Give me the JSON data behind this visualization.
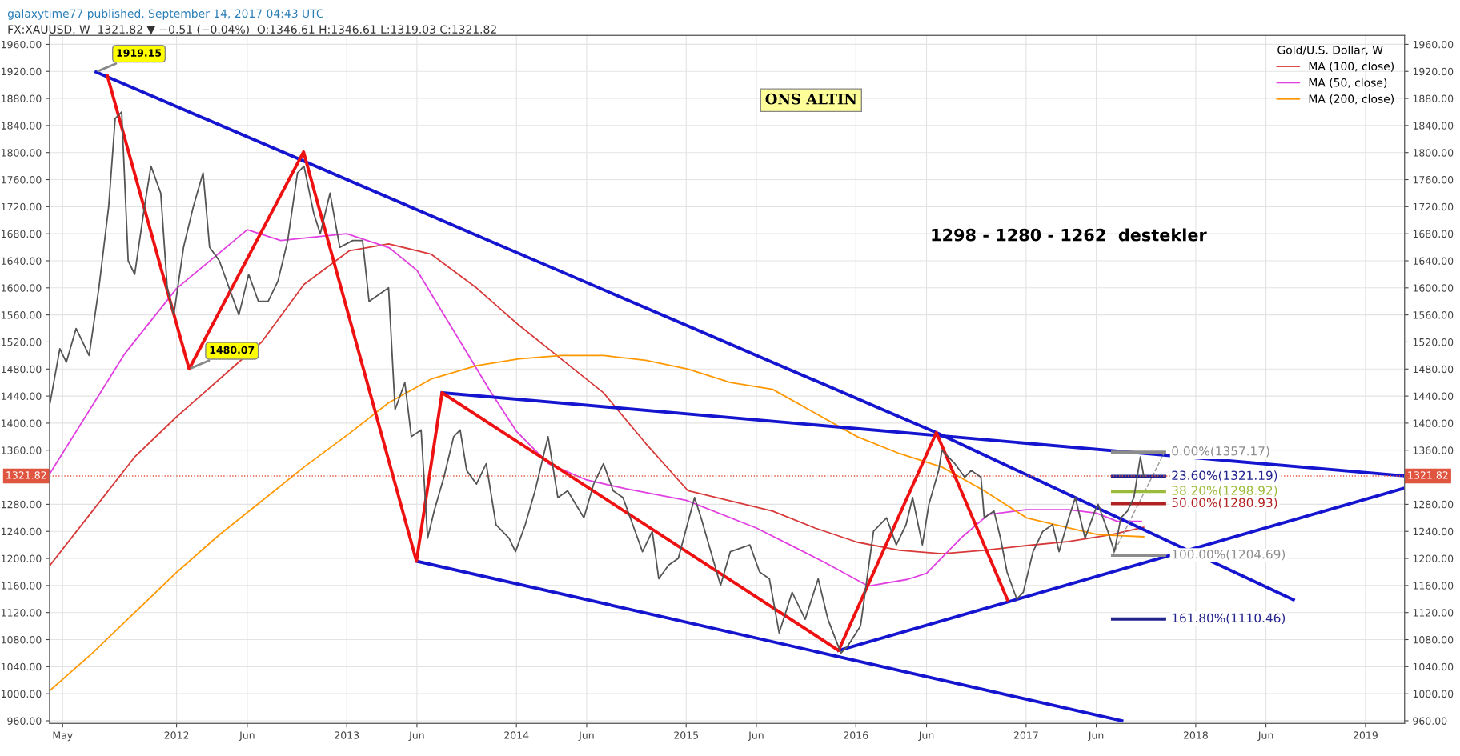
{
  "chart_data": {
    "type": "line",
    "title": "galaxytime77 published, September 14, 2017 04:43 UTC",
    "subtitle": "FX:XAUUSD, W  1321.82 ▼ −0.51 (−0.04%)  O:1346.61 H:1346.61 L:1319.03 C:1321.82",
    "legend_title": "Gold/U.S. Dollar, W",
    "legend": "top right",
    "grid": true,
    "xlim": [
      "2011-04-03",
      "2019-03-26"
    ],
    "xticks": [
      {
        "value": "2011-05-01",
        "label": "May"
      },
      {
        "value": "2012-01-01",
        "label": "2012"
      },
      {
        "value": "2012-06-01",
        "label": "Jun"
      },
      {
        "value": "2013-01-01",
        "label": "2013"
      },
      {
        "value": "2013-06-01",
        "label": "Jun"
      },
      {
        "value": "2014-01-01",
        "label": "2014"
      },
      {
        "value": "2014-06-01",
        "label": "Jun"
      },
      {
        "value": "2015-01-01",
        "label": "2015"
      },
      {
        "value": "2015-06-01",
        "label": "Jun"
      },
      {
        "value": "2016-01-01",
        "label": "2016"
      },
      {
        "value": "2016-06-01",
        "label": "Jun"
      },
      {
        "value": "2017-01-01",
        "label": "2017"
      },
      {
        "value": "2017-06-01",
        "label": "Jun"
      },
      {
        "value": "2018-01-01",
        "label": "2018"
      },
      {
        "value": "2018-06-01",
        "label": "Jun"
      },
      {
        "value": "2019-01-01",
        "label": "2019"
      }
    ],
    "ylim": [
      956,
      1973
    ],
    "yticks": [
      {
        "value": 960,
        "label": "960.00"
      },
      {
        "value": 1000,
        "label": "1000.00"
      },
      {
        "value": 1040,
        "label": "1040.00"
      },
      {
        "value": 1080,
        "label": "1080.00"
      },
      {
        "value": 1120,
        "label": "1120.00"
      },
      {
        "value": 1160,
        "label": "1160.00"
      },
      {
        "value": 1200,
        "label": "1200.00"
      },
      {
        "value": 1240,
        "label": "1240.00"
      },
      {
        "value": 1280,
        "label": "1280.00"
      },
      {
        "value": 1360,
        "label": "1360.00"
      },
      {
        "value": 1400,
        "label": "1400.00"
      },
      {
        "value": 1440,
        "label": "1440.00"
      },
      {
        "value": 1480,
        "label": "1480.00"
      },
      {
        "value": 1520,
        "label": "1520.00"
      },
      {
        "value": 1560,
        "label": "1560.00"
      },
      {
        "value": 1600,
        "label": "1600.00"
      },
      {
        "value": 1640,
        "label": "1640.00"
      },
      {
        "value": 1680,
        "label": "1680.00"
      },
      {
        "value": 1720,
        "label": "1720.00"
      },
      {
        "value": 1760,
        "label": "1760.00"
      },
      {
        "value": 1800,
        "label": "1800.00"
      },
      {
        "value": 1840,
        "label": "1840.00"
      },
      {
        "value": 1880,
        "label": "1880.00"
      },
      {
        "value": 1920,
        "label": "1920.00"
      },
      {
        "value": 1960,
        "label": "1960.00"
      }
    ],
    "y2lim": [
      956,
      1973
    ],
    "y2ticks": [
      {
        "value": 960,
        "label": "960.00"
      },
      {
        "value": 1000,
        "label": "1000.00"
      },
      {
        "value": 1040,
        "label": "1040.00"
      },
      {
        "value": 1080,
        "label": "1080.00"
      },
      {
        "value": 1120,
        "label": "1120.00"
      },
      {
        "value": 1160,
        "label": "1160.00"
      },
      {
        "value": 1200,
        "label": "1200.00"
      },
      {
        "value": 1240,
        "label": "1240.00"
      },
      {
        "value": 1280,
        "label": "1280.00"
      },
      {
        "value": 1360,
        "label": "1360.00"
      },
      {
        "value": 1400,
        "label": "1400.00"
      },
      {
        "value": 1440,
        "label": "1440.00"
      },
      {
        "value": 1480,
        "label": "1480.00"
      },
      {
        "value": 1520,
        "label": "1520.00"
      },
      {
        "value": 1560,
        "label": "1560.00"
      },
      {
        "value": 1600,
        "label": "1600.00"
      },
      {
        "value": 1640,
        "label": "1640.00"
      },
      {
        "value": 1680,
        "label": "1680.00"
      },
      {
        "value": 1720,
        "label": "1720.00"
      },
      {
        "value": 1760,
        "label": "1760.00"
      },
      {
        "value": 1800,
        "label": "1800.00"
      },
      {
        "value": 1840,
        "label": "1840.00"
      },
      {
        "value": 1880,
        "label": "1880.00"
      },
      {
        "value": 1920,
        "label": "1920.00"
      },
      {
        "value": 1960,
        "label": "1960.00"
      }
    ],
    "ref_lines": [
      {
        "axis": "y",
        "value": 1321.82,
        "label": "1321.82",
        "color": "#e0553f",
        "line_style": "dotted"
      }
    ],
    "series": [
      {
        "color": "#555555",
        "x": [
          "2011-04-04",
          "2011-04-25",
          "2011-05-09",
          "2011-05-30",
          "2011-06-27",
          "2011-07-18",
          "2011-08-08",
          "2011-08-22",
          "2011-09-05",
          "2011-09-19",
          "2011-10-03",
          "2011-10-24",
          "2011-11-07",
          "2011-11-28",
          "2011-12-12",
          "2011-12-26",
          "2012-01-16",
          "2012-02-06",
          "2012-02-27",
          "2012-03-12",
          "2012-04-02",
          "2012-05-14",
          "2012-06-04",
          "2012-06-25",
          "2012-07-16",
          "2012-08-06",
          "2012-08-27",
          "2012-09-17",
          "2012-10-01",
          "2012-10-22",
          "2012-11-05",
          "2012-11-26",
          "2012-12-17",
          "2013-01-14",
          "2013-02-04",
          "2013-02-18",
          "2013-03-11",
          "2013-04-01",
          "2013-04-15",
          "2013-05-06",
          "2013-05-20",
          "2013-06-10",
          "2013-06-24",
          "2013-07-08",
          "2013-07-29",
          "2013-08-19",
          "2013-09-02",
          "2013-09-16",
          "2013-10-07",
          "2013-10-28",
          "2013-11-18",
          "2013-12-16",
          "2013-12-30",
          "2014-01-20",
          "2014-02-10",
          "2014-03-10",
          "2014-03-31",
          "2014-04-21",
          "2014-05-26",
          "2014-06-16",
          "2014-07-07",
          "2014-07-28",
          "2014-08-18",
          "2014-09-08",
          "2014-09-29",
          "2014-10-20",
          "2014-11-03",
          "2014-11-24",
          "2014-12-15",
          "2015-01-19",
          "2015-02-02",
          "2015-02-23",
          "2015-03-16",
          "2015-04-06",
          "2015-05-18",
          "2015-06-08",
          "2015-06-29",
          "2015-07-20",
          "2015-08-17",
          "2015-09-14",
          "2015-10-12",
          "2015-11-02",
          "2015-11-30",
          "2015-12-14",
          "2016-01-11",
          "2016-02-08",
          "2016-03-07",
          "2016-03-28",
          "2016-04-18",
          "2016-05-02",
          "2016-05-23",
          "2016-06-06",
          "2016-06-27",
          "2016-07-04",
          "2016-08-01",
          "2016-08-22",
          "2016-09-05",
          "2016-09-26",
          "2016-10-03",
          "2016-10-24",
          "2016-11-07",
          "2016-11-21",
          "2016-12-12",
          "2016-12-26",
          "2017-01-16",
          "2017-02-06",
          "2017-02-27",
          "2017-03-13",
          "2017-04-03",
          "2017-04-17",
          "2017-05-08",
          "2017-05-29",
          "2017-06-05",
          "2017-06-26",
          "2017-07-10",
          "2017-07-24",
          "2017-08-07",
          "2017-08-21",
          "2017-09-04",
          "2017-09-11"
        ],
        "values": [
          1430,
          1510,
          1490,
          1540,
          1500,
          1600,
          1720,
          1850,
          1860,
          1640,
          1620,
          1720,
          1780,
          1740,
          1600,
          1560,
          1660,
          1720,
          1770,
          1660,
          1640,
          1560,
          1620,
          1580,
          1580,
          1610,
          1670,
          1770,
          1780,
          1710,
          1680,
          1740,
          1660,
          1670,
          1670,
          1580,
          1590,
          1600,
          1420,
          1460,
          1380,
          1390,
          1230,
          1270,
          1320,
          1380,
          1390,
          1330,
          1310,
          1340,
          1250,
          1230,
          1210,
          1250,
          1300,
          1380,
          1290,
          1300,
          1260,
          1310,
          1340,
          1300,
          1290,
          1250,
          1210,
          1240,
          1170,
          1190,
          1200,
          1290,
          1260,
          1210,
          1160,
          1210,
          1220,
          1180,
          1170,
          1090,
          1150,
          1110,
          1170,
          1110,
          1060,
          1070,
          1100,
          1240,
          1260,
          1220,
          1250,
          1290,
          1220,
          1280,
          1330,
          1360,
          1340,
          1320,
          1330,
          1320,
          1260,
          1270,
          1230,
          1180,
          1140,
          1150,
          1210,
          1240,
          1250,
          1210,
          1260,
          1290,
          1230,
          1270,
          1280,
          1240,
          1210,
          1260,
          1270,
          1290,
          1350,
          1322
        ]
      },
      {
        "name": "MA (100, close)",
        "color": "#d83a3a",
        "x": [
          "2011-04-04",
          "2011-07-04",
          "2011-10-03",
          "2012-01-02",
          "2012-04-02",
          "2012-07-02",
          "2012-10-01",
          "2013-01-07",
          "2013-04-01",
          "2013-07-01",
          "2013-10-07",
          "2014-01-06",
          "2014-04-07",
          "2014-07-07",
          "2014-10-06",
          "2015-01-05",
          "2015-04-06",
          "2015-07-06",
          "2015-10-05",
          "2016-01-04",
          "2016-04-04",
          "2016-07-04",
          "2016-10-03",
          "2017-01-02",
          "2017-04-03",
          "2017-07-03",
          "2017-09-11"
        ],
        "values": [
          1190,
          1270,
          1350,
          1410,
          1465,
          1520,
          1605,
          1655,
          1665,
          1650,
          1600,
          1545,
          1495,
          1445,
          1370,
          1300,
          1285,
          1270,
          1245,
          1224,
          1212,
          1207,
          1212,
          1219,
          1225,
          1235,
          1246
        ]
      },
      {
        "name": "MA (50, close)",
        "color": "#e040e0",
        "x": [
          "2011-04-04",
          "2011-09-12",
          "2012-01-01",
          "2012-06-01",
          "2012-08-12",
          "2013-01-01",
          "2013-04-03",
          "2013-06-01",
          "2013-11-05",
          "2014-01-01",
          "2014-03-11",
          "2014-06-01",
          "2014-08-24",
          "2015-01-01",
          "2015-06-01",
          "2015-08-21",
          "2015-10-29",
          "2016-01-28",
          "2016-04-21",
          "2016-06-01",
          "2016-08-17",
          "2016-10-12",
          "2017-01-01",
          "2017-04-03",
          "2017-06-01",
          "2017-07-16",
          "2017-09-06"
        ],
        "values": [
          1326,
          1503,
          1599,
          1686,
          1670,
          1680,
          1659,
          1626,
          1448,
          1388,
          1340,
          1316,
          1303,
          1286,
          1245,
          1217,
          1193,
          1159,
          1169,
          1178,
          1232,
          1265,
          1272,
          1272,
          1267,
          1255,
          1255
        ]
      },
      {
        "name": "MA (200, close)",
        "color": "#ff9800",
        "x": [
          "2011-04-04",
          "2011-07-04",
          "2011-10-03",
          "2012-01-02",
          "2012-04-02",
          "2012-07-02",
          "2012-10-01",
          "2013-01-07",
          "2013-04-01",
          "2013-07-01",
          "2013-10-07",
          "2014-01-06",
          "2014-04-07",
          "2014-07-07",
          "2014-10-06",
          "2015-01-05",
          "2015-04-06",
          "2015-07-06",
          "2015-10-05",
          "2016-01-04",
          "2016-04-04",
          "2016-07-04",
          "2016-10-03",
          "2017-01-02",
          "2017-04-03",
          "2017-06-05",
          "2017-09-11"
        ],
        "values": [
          1005,
          1060,
          1120,
          1180,
          1235,
          1285,
          1335,
          1385,
          1430,
          1465,
          1485,
          1495,
          1500,
          1500,
          1493,
          1480,
          1460,
          1450,
          1415,
          1380,
          1355,
          1335,
          1300,
          1260,
          1245,
          1235,
          1232
        ]
      },
      {
        "color": "#1515d0",
        "x": [
          "2011-07-12",
          "2016-06-22",
          "2018-07-30"
        ],
        "values": [
          1919.15,
          1386,
          1139
        ]
      },
      {
        "color": "#1515d0",
        "x": [
          "2013-07-25",
          "2019-03-26"
        ],
        "values": [
          1445,
          1322
        ]
      },
      {
        "color": "#1515d0",
        "x": [
          "2013-05-31",
          "2017-07-26"
        ],
        "values": [
          1196,
          960
        ]
      },
      {
        "color": "#1515d0",
        "x": [
          "2015-11-25",
          "2019-03-26"
        ],
        "values": [
          1064,
          1304
        ]
      },
      {
        "color": "#ee1111",
        "x": [
          "2011-08-05",
          "2012-01-28",
          "2012-09-30",
          "2013-05-31",
          "2013-07-25",
          "2015-11-25",
          "2016-06-22",
          "2016-11-22"
        ],
        "values": [
          1914,
          1480.07,
          1801,
          1196,
          1445,
          1064,
          1386,
          1139
        ]
      },
      {
        "color": "#999999",
        "line_style": "dashed",
        "x": [
          "2017-07-06",
          "2017-10-26"
        ],
        "values": [
          1204.69,
          1357.17
        ]
      },
      {
        "color": "#8c8c8c",
        "x": [
          "2017-07-06",
          "2017-10-26"
        ],
        "values": [
          1357.17,
          1357.17
        ]
      },
      {
        "color": "#23238e",
        "x": [
          "2017-07-06",
          "2017-10-26"
        ],
        "values": [
          1321.19,
          1321.19
        ]
      },
      {
        "color": "#9bbb3a",
        "x": [
          "2017-07-06",
          "2017-10-26"
        ],
        "values": [
          1298.92,
          1298.92
        ]
      },
      {
        "color": "#b22222",
        "x": [
          "2017-07-06",
          "2017-10-26"
        ],
        "values": [
          1280.93,
          1280.93
        ]
      },
      {
        "color": "#8c8c8c",
        "x": [
          "2017-07-06",
          "2017-10-26"
        ],
        "values": [
          1204.69,
          1204.69
        ]
      },
      {
        "color": "#23238e",
        "x": [
          "2017-07-06",
          "2017-10-26"
        ],
        "values": [
          1110.46,
          1110.46
        ]
      }
    ],
    "annotations": [
      "ONS ALTIN",
      "1298 - 1280 - 1262  destekler",
      {
        "text": "1919.15",
        "x": "2011-07-12",
        "y": 1919.15
      },
      {
        "text": "1480.07",
        "x": "2012-01-28",
        "y": 1480.07
      },
      {
        "text": "0.00%(1357.17)",
        "x": "2017-10-26",
        "y": 1357.17
      },
      {
        "text": "23.60%(1321.19)",
        "x": "2017-10-26",
        "y": 1321.19
      },
      {
        "text": "38.20%(1298.92)",
        "x": "2017-10-26",
        "y": 1298.92
      },
      {
        "text": "50.00%(1280.93)",
        "x": "2017-10-26",
        "y": 1280.93
      },
      {
        "text": "100.00%(1204.69)",
        "x": "2017-10-26",
        "y": 1204.69
      },
      {
        "text": "161.80%(1110.46)",
        "x": "2017-10-26",
        "y": 1110.46
      }
    ]
  }
}
